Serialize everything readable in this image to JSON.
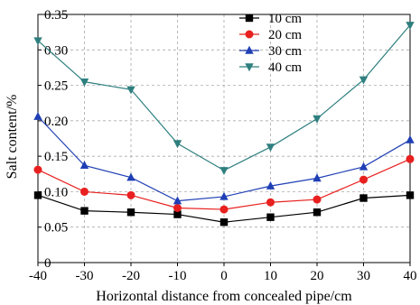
{
  "chart_data": {
    "type": "line",
    "title": "",
    "xlabel": "Horizontal distance from concealed pipe/cm",
    "ylabel": "Salt content/%",
    "x": [
      -40,
      -30,
      -20,
      -10,
      0,
      10,
      20,
      30,
      40
    ],
    "xlim": [
      -40,
      40
    ],
    "ylim": [
      0,
      0.35
    ],
    "xticks": [
      "-40",
      "-30",
      "-20",
      "-10",
      "0",
      "10",
      "20",
      "30",
      "40"
    ],
    "yticks": [
      "0",
      "0.05",
      "0.10",
      "0.15",
      "0.20",
      "0.25",
      "0.30",
      "0.35"
    ],
    "grid": "dashed",
    "legend_position": "top-center",
    "series": [
      {
        "name": "10 cm",
        "color": "#000000",
        "marker": "square",
        "values": [
          0.095,
          0.073,
          0.071,
          0.068,
          0.057,
          0.064,
          0.071,
          0.091,
          0.095
        ]
      },
      {
        "name": "20 cm",
        "color": "#e8201f",
        "marker": "circle",
        "values": [
          0.131,
          0.1,
          0.095,
          0.077,
          0.075,
          0.085,
          0.089,
          0.117,
          0.146
        ]
      },
      {
        "name": "30 cm",
        "color": "#1f3fb5",
        "marker": "triangle-up",
        "values": [
          0.206,
          0.137,
          0.12,
          0.087,
          0.093,
          0.108,
          0.119,
          0.135,
          0.173
        ]
      },
      {
        "name": "40 cm",
        "color": "#2f7f7f",
        "marker": "triangle-down",
        "values": [
          0.313,
          0.255,
          0.244,
          0.168,
          0.13,
          0.163,
          0.203,
          0.258,
          0.335
        ]
      }
    ]
  }
}
